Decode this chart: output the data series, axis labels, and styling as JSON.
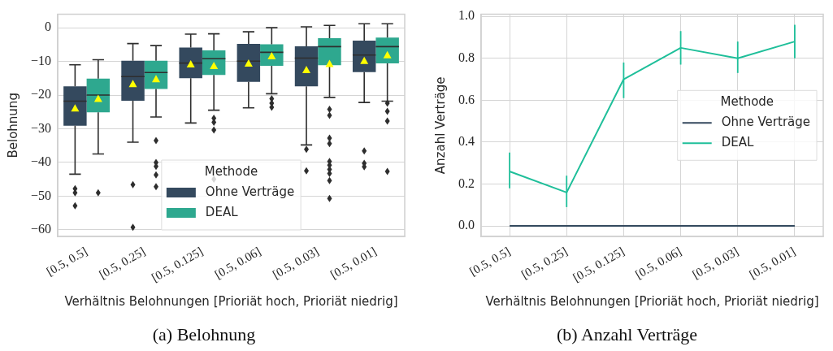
{
  "chart_data": [
    {
      "type": "box",
      "title": "(a) Belohnung",
      "xlabel": "Verhältnis Belohnungen [Prioriät hoch, Prioriät niedrig]",
      "ylabel": "Belohnung",
      "legend_title": "Methode",
      "categories": [
        "[0.5, 0.5]",
        "[0.5, 0.25]",
        "[0.5, 0.125]",
        "[0.5, 0.06]",
        "[0.5, 0.03]",
        "[0.5, 0.01]"
      ],
      "ylim": [
        -62,
        4
      ],
      "yticks": [
        {
          "value": -60,
          "label": "−60"
        },
        {
          "value": -50,
          "label": "−50"
        },
        {
          "value": -40,
          "label": "−40"
        },
        {
          "value": -30,
          "label": "−30"
        },
        {
          "value": -20,
          "label": "−20"
        },
        {
          "value": -10,
          "label": "−10"
        },
        0
      ],
      "grid": "y",
      "legend": "bottom",
      "series": [
        {
          "name": "Ohne Verträge",
          "color": "#34495e",
          "boxes": [
            {
              "low": -43.5,
              "q1": -29.1,
              "median": -21.8,
              "q3": -17.4,
              "high": -11,
              "mean": -23.9,
              "outliers": [
                -47.8,
                -49,
                -52.9
              ]
            },
            {
              "low": -34,
              "q1": -21.7,
              "median": -14.5,
              "q3": -9.8,
              "high": -4.7,
              "mean": -16.7,
              "outliers": [
                -46.6,
                -59.3
              ]
            },
            {
              "low": -28.3,
              "q1": -15,
              "median": -10.5,
              "q3": -5.9,
              "high": -1.9,
              "mean": -10.8
            },
            {
              "low": -23.8,
              "q1": -16.1,
              "median": -9.9,
              "q3": -4.8,
              "high": -1.2,
              "mean": -10.6
            },
            {
              "low": -34.8,
              "q1": -17.4,
              "median": -9,
              "q3": -5.5,
              "high": 0.3,
              "mean": -12.5,
              "outliers": [
                -36.1,
                -42.5
              ]
            },
            {
              "low": -22.2,
              "q1": -13.2,
              "median": -8.1,
              "q3": -3.8,
              "high": 1.2,
              "mean": -9.8,
              "outliers": [
                -36.6,
                -40.3,
                -41.3
              ]
            }
          ]
        },
        {
          "name": "DEAL",
          "color": "#2ea88f",
          "boxes": [
            {
              "low": -37.5,
              "q1": -25.1,
              "median": -20,
              "q3": -15.1,
              "high": -9.5,
              "mean": -21.1,
              "outliers": [
                -49
              ]
            },
            {
              "low": -26.5,
              "q1": -18.2,
              "median": -13.3,
              "q3": -9.8,
              "high": -5.3,
              "mean": -15.2,
              "outliers": [
                -33.5,
                -40,
                -41.2,
                -43.7,
                -47.2
              ]
            },
            {
              "low": -24.5,
              "q1": -14,
              "median": -9.2,
              "q3": -6.7,
              "high": -1.8,
              "mean": -11.3,
              "outliers": [
                -26.9,
                -28.1,
                -30.4,
                -45
              ]
            },
            {
              "low": -19.6,
              "q1": -11.3,
              "median": -7.3,
              "q3": -4.9,
              "high": 0,
              "mean": -8.4,
              "outliers": [
                -21.1,
                -22.4,
                -23.6
              ]
            },
            {
              "low": -20.7,
              "q1": -11.1,
              "median": -5.6,
              "q3": -3.1,
              "high": 0.7,
              "mean": -10.7,
              "outliers": [
                -24.2,
                -26,
                -32.8,
                -34.4,
                -39.7,
                -40.8,
                -42.1,
                -43.3,
                -45.4,
                -50.7
              ]
            },
            {
              "low": -21.8,
              "q1": -10.6,
              "median": -5.6,
              "q3": -2.9,
              "high": 1.2,
              "mean": -8.1,
              "outliers": [
                -22.4,
                -24.8,
                -27.7,
                -42.7
              ]
            }
          ]
        }
      ]
    },
    {
      "type": "line",
      "title": "(b) Anzahl Verträge",
      "xlabel": "Verhältnis Belohnungen [Prioriät hoch, Prioriät niedrig]",
      "ylabel": "Anzahl Verträge",
      "legend_title": "Methode",
      "categories": [
        "[0.5, 0.5]",
        "[0.5, 0.25]",
        "[0.5, 0.125]",
        "[0.5, 0.06]",
        "[0.5, 0.03]",
        "[0.5, 0.01]"
      ],
      "ylim": [
        -0.05,
        1.01
      ],
      "yticks": [
        {
          "value": 0,
          "label": "0.0"
        },
        {
          "value": 0.2,
          "label": "0.2"
        },
        {
          "value": 0.4,
          "label": "0.4"
        },
        {
          "value": 0.6,
          "label": "0.6"
        },
        {
          "value": 0.8,
          "label": "0.8"
        },
        {
          "value": 1,
          "label": "1.0"
        }
      ],
      "grid": true,
      "legend": "right",
      "series": [
        {
          "name": "Ohne Verträge",
          "color": "#34495e",
          "values": [
            0,
            0,
            0,
            0,
            0,
            0
          ]
        },
        {
          "name": "DEAL",
          "color": "#1fbf9a",
          "values": [
            0.26,
            0.16,
            0.7,
            0.85,
            0.8,
            0.88
          ],
          "errors": [
            [
              0.18,
              0.35
            ],
            [
              0.09,
              0.24
            ],
            [
              0.61,
              0.78
            ],
            [
              0.77,
              0.93
            ],
            [
              0.73,
              0.88
            ],
            [
              0.8,
              0.96
            ]
          ]
        }
      ]
    }
  ]
}
